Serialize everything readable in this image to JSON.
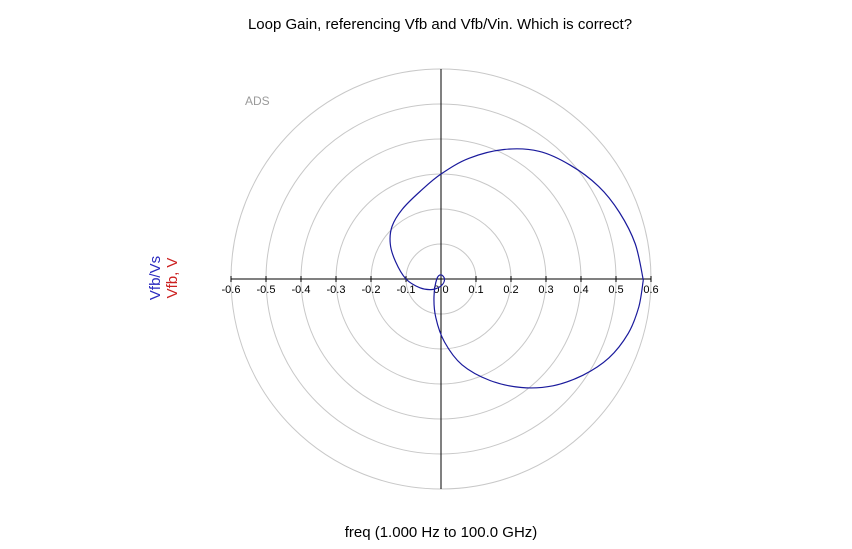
{
  "chart_data": {
    "type": "polar",
    "title": "Loop Gain, referencing Vfb and Vfb/Vin.  Which is correct?",
    "xlabel": "freq (1.000  Hz to 100.0 GHz)",
    "ylabels": [
      "Vfb/Vs",
      "Vfb, V"
    ],
    "watermark": "ADS",
    "xlim": [
      -0.6,
      0.6
    ],
    "rings": [
      0.1,
      0.2,
      0.3,
      0.4,
      0.5,
      0.6
    ],
    "tick_labels": [
      "-0.6",
      "-0.5",
      "-0.4",
      "-0.3",
      "-0.2",
      "-0.1",
      "0.0",
      "0.1",
      "0.2",
      "0.3",
      "0.4",
      "0.5",
      "0.6"
    ],
    "grid": true,
    "series": [
      {
        "name": "Vfb/Vs",
        "color": "#1a1a9c",
        "points": [
          [
            0.578,
            -0.003
          ],
          [
            0.565,
            -0.08
          ],
          [
            0.535,
            -0.155
          ],
          [
            0.48,
            -0.225
          ],
          [
            0.405,
            -0.275
          ],
          [
            0.32,
            -0.305
          ],
          [
            0.23,
            -0.31
          ],
          [
            0.14,
            -0.29
          ],
          [
            0.06,
            -0.245
          ],
          [
            0.01,
            -0.18
          ],
          [
            -0.015,
            -0.11
          ],
          [
            -0.02,
            -0.05
          ],
          [
            -0.012,
            0.0
          ],
          [
            0.0,
            0.012
          ],
          [
            0.01,
            0.0
          ],
          [
            0.002,
            -0.018
          ],
          [
            -0.025,
            -0.03
          ],
          [
            -0.06,
            -0.025
          ],
          [
            -0.1,
            0.0
          ],
          [
            -0.13,
            0.05
          ],
          [
            -0.145,
            0.1
          ],
          [
            -0.14,
            0.15
          ],
          [
            -0.11,
            0.2
          ],
          [
            -0.06,
            0.25
          ],
          [
            0.0,
            0.3
          ],
          [
            0.08,
            0.345
          ],
          [
            0.18,
            0.37
          ],
          [
            0.28,
            0.365
          ],
          [
            0.37,
            0.325
          ],
          [
            0.45,
            0.265
          ],
          [
            0.51,
            0.19
          ],
          [
            0.555,
            0.1
          ],
          [
            0.578,
            -0.003
          ]
        ]
      }
    ]
  },
  "colors": {
    "curve": "#1a1a9c",
    "ylabel_1": "#2a2abf",
    "ylabel_2": "#cc2020",
    "grid": "#c8c8c8",
    "axis": "#000000"
  }
}
